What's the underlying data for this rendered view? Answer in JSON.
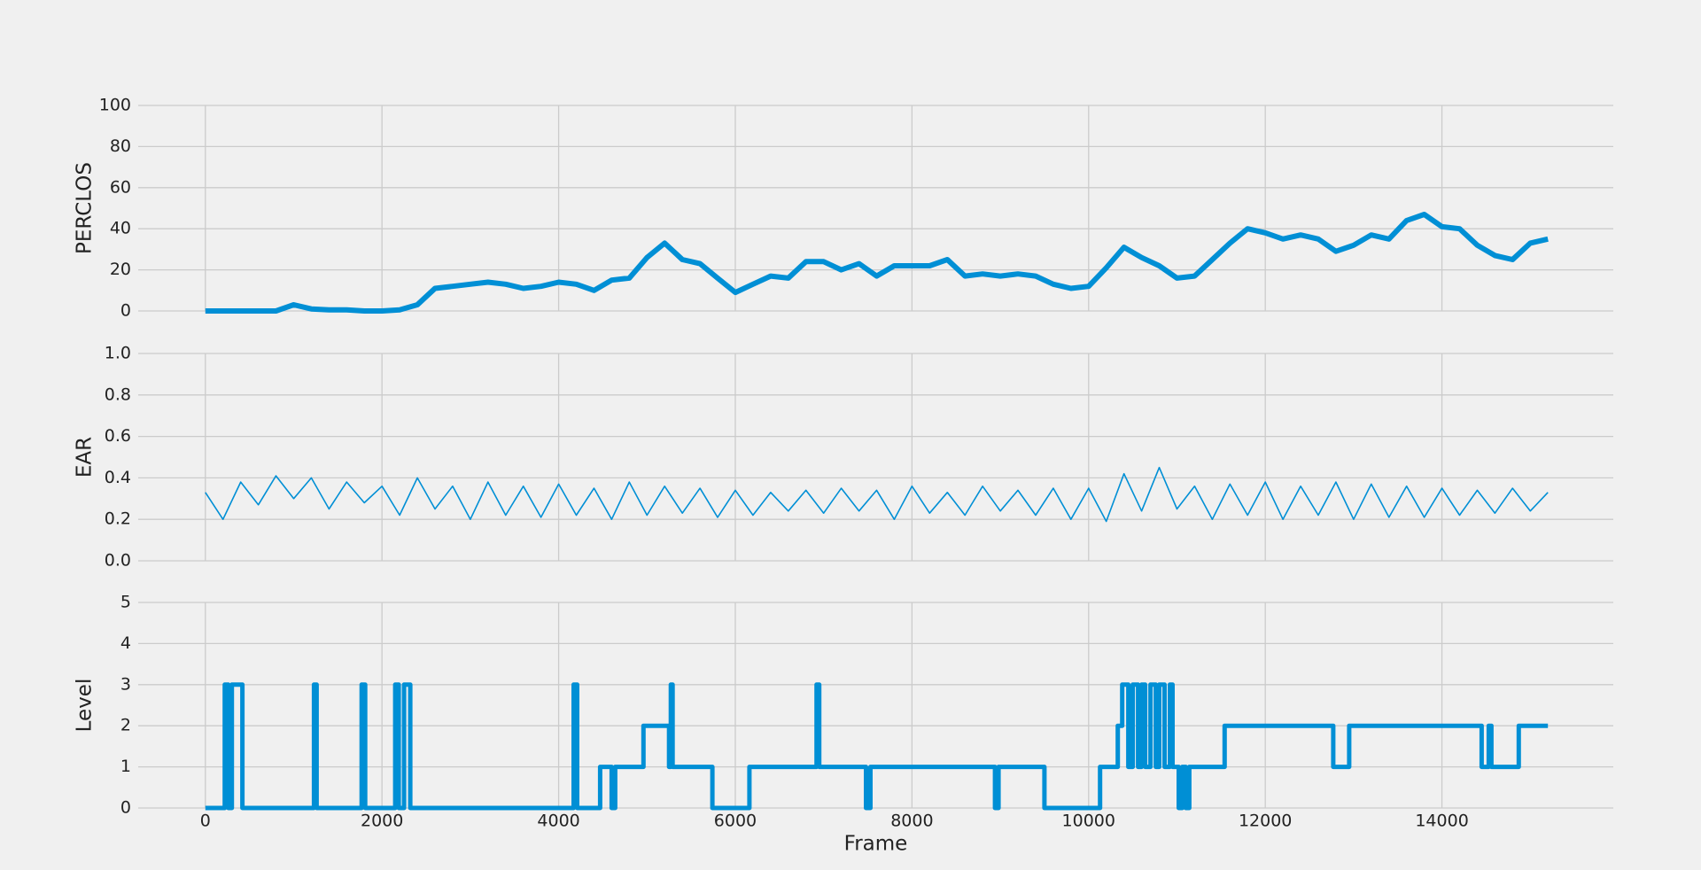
{
  "chart_data": [
    {
      "type": "line",
      "ylabel": "PERCLOS",
      "color": "#008fd5",
      "line_width": 6,
      "grid": true,
      "tick_labels_x": false,
      "xlim": [
        -760,
        15940
      ],
      "xticks": [
        0,
        2000,
        4000,
        6000,
        8000,
        10000,
        12000,
        14000
      ],
      "ylim": [
        0,
        100
      ],
      "yticks": [
        0,
        20,
        40,
        60,
        80,
        100
      ],
      "x": [
        0,
        200,
        400,
        600,
        800,
        1000,
        1200,
        1400,
        1600,
        1800,
        2000,
        2200,
        2400,
        2600,
        2800,
        3000,
        3200,
        3400,
        3600,
        3800,
        4000,
        4200,
        4400,
        4600,
        4800,
        5000,
        5200,
        5400,
        5600,
        5800,
        6000,
        6200,
        6400,
        6600,
        6800,
        7000,
        7200,
        7400,
        7600,
        7800,
        8000,
        8200,
        8400,
        8600,
        8800,
        9000,
        9200,
        9400,
        9600,
        9800,
        10000,
        10200,
        10400,
        10600,
        10800,
        11000,
        11200,
        11400,
        11600,
        11800,
        12000,
        12200,
        12400,
        12600,
        12800,
        13000,
        13200,
        13400,
        13600,
        13800,
        14000,
        14200,
        14400,
        14600,
        14800,
        15000,
        15200
      ],
      "values": [
        0,
        0,
        0,
        0,
        0,
        3,
        1,
        0.5,
        0.5,
        0,
        0,
        0.5,
        3,
        11,
        12,
        13,
        14,
        13,
        11,
        12,
        14,
        13,
        10,
        15,
        16,
        26,
        33,
        25,
        23,
        16,
        9,
        13,
        17,
        16,
        24,
        24,
        20,
        23,
        17,
        22,
        22,
        22,
        25,
        17,
        18,
        17,
        18,
        17,
        13,
        11,
        12,
        21,
        31,
        26,
        22,
        16,
        17,
        25,
        33,
        40,
        38,
        35,
        37,
        35,
        29,
        32,
        37,
        35,
        44,
        47,
        41,
        40,
        32,
        27,
        25,
        33,
        35
      ]
    },
    {
      "type": "line",
      "ylabel": "EAR",
      "color": "#008fd5",
      "line_width": 1.6,
      "grid": true,
      "tick_labels_x": false,
      "xlim": [
        -760,
        15940
      ],
      "xticks": [
        0,
        2000,
        4000,
        6000,
        8000,
        10000,
        12000,
        14000
      ],
      "ylim": [
        0,
        1
      ],
      "yticks": [
        {
          "value": 0,
          "label": "0.0"
        },
        0.2,
        0.4,
        0.6,
        0.8,
        {
          "value": 1,
          "label": "1.0"
        }
      ],
      "x": [
        0,
        200,
        400,
        600,
        800,
        1000,
        1200,
        1400,
        1600,
        1800,
        2000,
        2200,
        2400,
        2600,
        2800,
        3000,
        3200,
        3400,
        3600,
        3800,
        4000,
        4200,
        4400,
        4600,
        4800,
        5000,
        5200,
        5400,
        5600,
        5800,
        6000,
        6200,
        6400,
        6600,
        6800,
        7000,
        7200,
        7400,
        7600,
        7800,
        8000,
        8200,
        8400,
        8600,
        8800,
        9000,
        9200,
        9400,
        9600,
        9800,
        10000,
        10200,
        10400,
        10600,
        10800,
        11000,
        11200,
        11400,
        11600,
        11800,
        12000,
        12200,
        12400,
        12600,
        12800,
        13000,
        13200,
        13400,
        13600,
        13800,
        14000,
        14200,
        14400,
        14600,
        14800,
        15000,
        15200
      ],
      "values": [
        0.33,
        0.2,
        0.38,
        0.27,
        0.41,
        0.3,
        0.4,
        0.25,
        0.38,
        0.28,
        0.36,
        0.22,
        0.4,
        0.25,
        0.36,
        0.2,
        0.38,
        0.22,
        0.36,
        0.21,
        0.37,
        0.22,
        0.35,
        0.2,
        0.38,
        0.22,
        0.36,
        0.23,
        0.35,
        0.21,
        0.34,
        0.22,
        0.33,
        0.24,
        0.34,
        0.23,
        0.35,
        0.24,
        0.34,
        0.2,
        0.36,
        0.23,
        0.33,
        0.22,
        0.36,
        0.24,
        0.34,
        0.22,
        0.35,
        0.2,
        0.35,
        0.19,
        0.42,
        0.24,
        0.45,
        0.25,
        0.36,
        0.2,
        0.37,
        0.22,
        0.38,
        0.2,
        0.36,
        0.22,
        0.38,
        0.2,
        0.37,
        0.21,
        0.36,
        0.21,
        0.35,
        0.22,
        0.34,
        0.23,
        0.35,
        0.24,
        0.33
      ]
    },
    {
      "type": "step",
      "ylabel": "Level",
      "xlabel": "Frame",
      "color": "#008fd5",
      "line_width": 5,
      "grid": true,
      "tick_labels_x": true,
      "xlim": [
        -760,
        15940
      ],
      "xticks": [
        0,
        2000,
        4000,
        6000,
        8000,
        10000,
        12000,
        14000
      ],
      "ylim": [
        0,
        5
      ],
      "yticks": [
        0,
        1,
        2,
        3,
        4,
        5
      ],
      "x": [
        0,
        220,
        260,
        300,
        420,
        1230,
        1260,
        1770,
        1810,
        2150,
        2190,
        2250,
        2320,
        4170,
        4210,
        4470,
        4600,
        4640,
        4960,
        5250,
        5270,
        5290,
        5740,
        6160,
        6920,
        6950,
        7480,
        7530,
        8940,
        8980,
        9500,
        10130,
        10330,
        10380,
        10450,
        10500,
        10560,
        10600,
        10640,
        10700,
        10760,
        10800,
        10860,
        10920,
        10950,
        11020,
        11060,
        11100,
        11140,
        11540,
        12770,
        12950,
        14450,
        14530,
        14560,
        14870,
        15200
      ],
      "values": [
        0,
        3,
        0,
        3,
        0,
        3,
        0,
        3,
        0,
        3,
        0,
        3,
        0,
        3,
        0,
        1,
        0,
        1,
        2,
        1,
        3,
        1,
        0,
        1,
        3,
        1,
        0,
        1,
        0,
        1,
        0,
        1,
        2,
        3,
        1,
        3,
        1,
        3,
        1,
        3,
        1,
        3,
        1,
        3,
        1,
        0,
        1,
        0,
        1,
        2,
        1,
        2,
        1,
        2,
        1,
        2,
        2
      ]
    }
  ]
}
